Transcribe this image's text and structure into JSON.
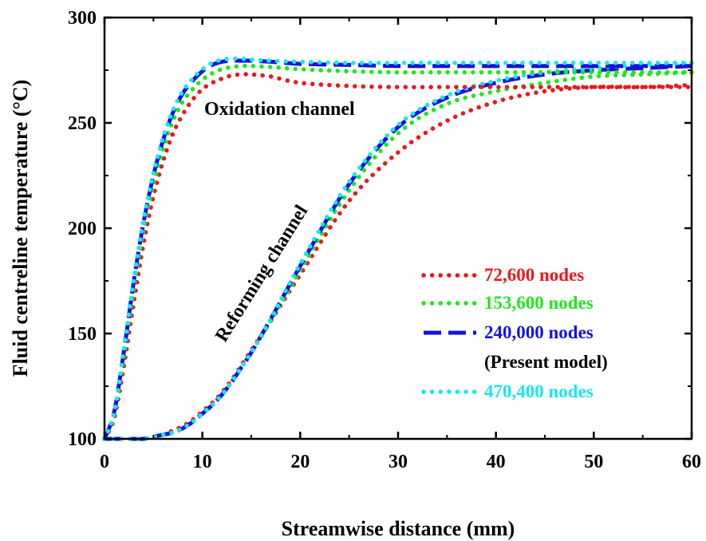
{
  "chart_data": {
    "type": "line",
    "xlabel": "Streamwise distance (mm)",
    "ylabel": "Fluid centreline temperature (°C)",
    "xlim": [
      0,
      60
    ],
    "ylim": [
      100,
      300
    ],
    "x_ticks": [
      0,
      10,
      20,
      30,
      40,
      50,
      60
    ],
    "y_ticks": [
      100,
      150,
      200,
      250,
      300
    ],
    "grid": false,
    "legend_position": "lower-right",
    "annotations": [
      {
        "text": "Oxidation channel"
      },
      {
        "text": "Reforming channel"
      }
    ],
    "x": [
      0,
      1,
      2,
      3,
      4,
      5,
      6,
      7,
      8,
      9,
      10,
      11,
      12,
      13,
      14,
      15,
      17,
      20,
      25,
      30,
      35,
      40,
      45,
      50,
      55,
      60
    ],
    "series": [
      {
        "name": "72,600 nodes",
        "channel": "Oxidation channel",
        "color": "#e8191f",
        "style": "dotted",
        "values": [
          100,
          110,
          135,
          165,
          193,
          215,
          232,
          245,
          254,
          261,
          266,
          269,
          271,
          272.5,
          273,
          273,
          272,
          269,
          267.5,
          267,
          267,
          267,
          267,
          267,
          267,
          268
        ]
      },
      {
        "name": "153,600 nodes",
        "channel": "Oxidation channel",
        "color": "#1ee81e",
        "style": "dotted",
        "values": [
          100,
          112,
          140,
          172,
          200,
          221,
          238,
          251,
          260,
          266,
          270.5,
          273.5,
          275.5,
          276.5,
          277,
          277,
          276.5,
          275.5,
          274.5,
          274,
          274,
          274,
          274,
          274,
          274,
          274
        ]
      },
      {
        "name": "240,000 nodes",
        "name_note": "(Present model)",
        "channel": "Oxidation channel",
        "color": "#1414dc",
        "style": "dashed",
        "values": [
          100,
          113,
          142,
          175,
          203,
          225,
          242,
          255,
          264,
          270,
          274.5,
          277.5,
          279,
          279.5,
          279.5,
          279.5,
          279,
          278,
          277.5,
          277,
          277,
          277,
          277,
          277,
          277,
          277
        ]
      },
      {
        "name": "470,400 nodes",
        "channel": "Oxidation channel",
        "color": "#19e6f0",
        "style": "dotted",
        "values": [
          100,
          113,
          143,
          176,
          204,
          226,
          243,
          256,
          265,
          271,
          275.5,
          278.5,
          280,
          280.5,
          280.5,
          280,
          279.5,
          279,
          278.5,
          278.5,
          278.5,
          278.5,
          278.5,
          278.5,
          278.5,
          278.5
        ]
      },
      {
        "name": "72,600 nodes",
        "channel": "Reforming channel",
        "color": "#e8191f",
        "style": "dotted",
        "values": [
          100,
          100,
          100,
          100,
          100,
          101,
          102,
          104,
          106,
          109,
          113,
          117,
          122,
          128,
          135,
          142,
          156,
          178,
          213,
          236,
          251,
          260,
          265,
          267,
          267,
          267
        ]
      },
      {
        "name": "153,600 nodes",
        "channel": "Reforming channel",
        "color": "#1ee81e",
        "style": "dotted",
        "values": [
          100,
          100,
          100,
          100,
          100,
          101,
          102,
          103,
          105,
          108,
          112,
          116,
          121,
          127,
          134,
          141,
          156,
          180,
          218,
          245,
          259,
          265,
          269,
          272,
          273,
          274
        ]
      },
      {
        "name": "240,000 nodes",
        "channel": "Reforming channel",
        "color": "#1414dc",
        "style": "dashed",
        "values": [
          100,
          100,
          100,
          100,
          100,
          101,
          102,
          103,
          105,
          108,
          112,
          116,
          121,
          127,
          134,
          141,
          157,
          182,
          221,
          248,
          262,
          269,
          273,
          275,
          276,
          277
        ]
      },
      {
        "name": "470,400 nodes",
        "channel": "Reforming channel",
        "color": "#19e6f0",
        "style": "dotted",
        "values": [
          100,
          100,
          100,
          100,
          100,
          101,
          102,
          103,
          105,
          108,
          112,
          116,
          121,
          127,
          134,
          141,
          157,
          183,
          222,
          249,
          263,
          270,
          274,
          276,
          277.5,
          278.5
        ]
      }
    ],
    "legend": [
      {
        "label": "72,600 nodes",
        "color": "#e8191f",
        "style": "dotted",
        "note": ""
      },
      {
        "label": "153,600 nodes",
        "color": "#1ee81e",
        "style": "dotted",
        "note": ""
      },
      {
        "label": "240,000 nodes",
        "color": "#1414dc",
        "style": "dashed",
        "note": "(Present model)"
      },
      {
        "label": "470,400 nodes",
        "color": "#19e6f0",
        "style": "dotted",
        "note": ""
      }
    ]
  }
}
